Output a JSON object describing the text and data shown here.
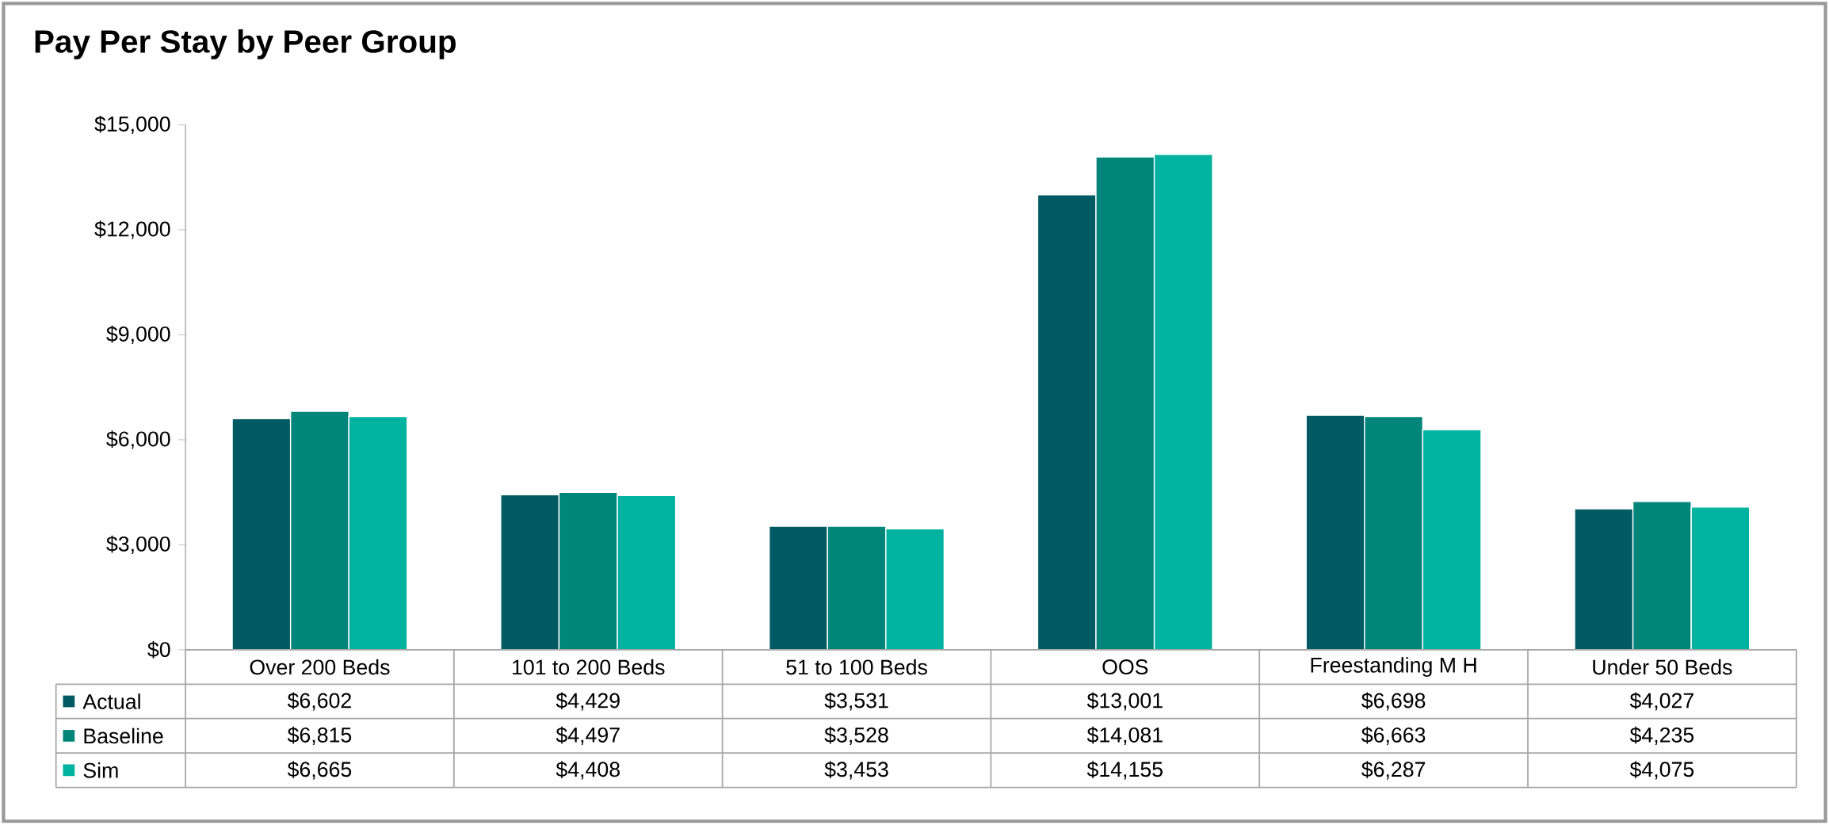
{
  "chart_data": {
    "type": "bar",
    "title": "Pay Per Stay by Peer Group",
    "categories": [
      "Over 200 Beds",
      "101 to 200 Beds",
      "51 to 100 Beds",
      "OOS",
      "Freestanding M H",
      "Under 50 Beds"
    ],
    "series": [
      {
        "name": "Actual",
        "color": "#005a64",
        "values": [
          6602,
          4429,
          3531,
          13001,
          6698,
          4027
        ],
        "value_labels": [
          "$6,602",
          "$4,429",
          "$3,531",
          "$13,001",
          "$6,698",
          "$4,027"
        ]
      },
      {
        "name": "Baseline",
        "color": "#00857a",
        "values": [
          6815,
          4497,
          3528,
          14081,
          6663,
          4235
        ],
        "value_labels": [
          "$6,815",
          "$4,497",
          "$3,528",
          "$14,081",
          "$6,663",
          "$4,235"
        ]
      },
      {
        "name": "Sim",
        "color": "#00b2a0",
        "values": [
          6665,
          4408,
          3453,
          14155,
          6287,
          4075
        ],
        "value_labels": [
          "$6,665",
          "$4,408",
          "$3,453",
          "$14,155",
          "$6,287",
          "$4,075"
        ]
      }
    ],
    "ylim": [
      0,
      15000
    ],
    "yticks": [
      {
        "value": 0,
        "label": "$0"
      },
      {
        "value": 3000,
        "label": "$3,000"
      },
      {
        "value": 6000,
        "label": "$6,000"
      },
      {
        "value": 9000,
        "label": "$9,000"
      },
      {
        "value": 12000,
        "label": "$12,000"
      },
      {
        "value": 15000,
        "label": "$15,000"
      }
    ],
    "legend": "bottom"
  }
}
